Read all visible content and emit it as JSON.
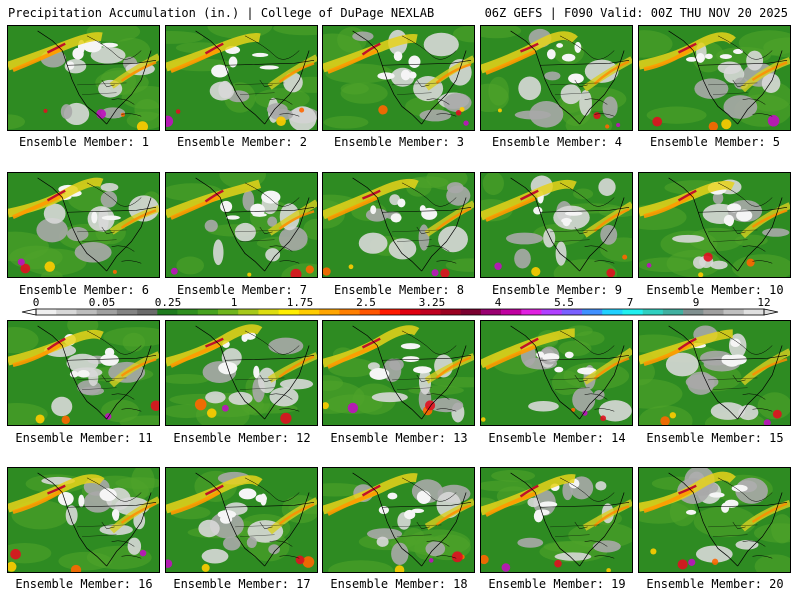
{
  "header": {
    "title": "Precipitation Accumulation (in.) | College of DuPage NEXLAB",
    "run_info": "06Z GEFS | F090 Valid: 00Z THU NOV 20 2025"
  },
  "member_label_prefix": "Ensemble Member:",
  "members": [
    {
      "label": "Ensemble Member: 1"
    },
    {
      "label": "Ensemble Member: 2"
    },
    {
      "label": "Ensemble Member: 3"
    },
    {
      "label": "Ensemble Member: 4"
    },
    {
      "label": "Ensemble Member: 5"
    },
    {
      "label": "Ensemble Member: 6"
    },
    {
      "label": "Ensemble Member: 7"
    },
    {
      "label": "Ensemble Member: 8"
    },
    {
      "label": "Ensemble Member: 9"
    },
    {
      "label": "Ensemble Member: 10"
    },
    {
      "label": "Ensemble Member: 11"
    },
    {
      "label": "Ensemble Member: 12"
    },
    {
      "label": "Ensemble Member: 13"
    },
    {
      "label": "Ensemble Member: 14"
    },
    {
      "label": "Ensemble Member: 15"
    },
    {
      "label": "Ensemble Member: 16"
    },
    {
      "label": "Ensemble Member: 17"
    },
    {
      "label": "Ensemble Member: 18"
    },
    {
      "label": "Ensemble Member: 19"
    },
    {
      "label": "Ensemble Member: 20"
    }
  ],
  "colorbar": {
    "tick_labels": [
      "0",
      "0.05",
      "0.25",
      "1",
      "1.75",
      "2.5",
      "3.25",
      "4",
      "5.5",
      "7",
      "9",
      "12"
    ],
    "colors": [
      "#f0f0f0",
      "#d8d8d8",
      "#bdbdbd",
      "#a0a0a0",
      "#838383",
      "#6b6b6b",
      "#1e7b1e",
      "#2f8f1f",
      "#46a21f",
      "#6fb51d",
      "#a6c91a",
      "#dddd10",
      "#ffee00",
      "#ffcc00",
      "#ffa500",
      "#ff7f00",
      "#ff5500",
      "#ff1a00",
      "#e00010",
      "#c00020",
      "#9a0020",
      "#7a0030",
      "#9a0070",
      "#c000a0",
      "#e020e0",
      "#b040ff",
      "#7a60ff",
      "#4090ff",
      "#20d0ff",
      "#20f0f0",
      "#30d0c0",
      "#40b0a0",
      "#809090",
      "#a0a0a0",
      "#c0c0c0",
      "#e0e0e0"
    ]
  }
}
